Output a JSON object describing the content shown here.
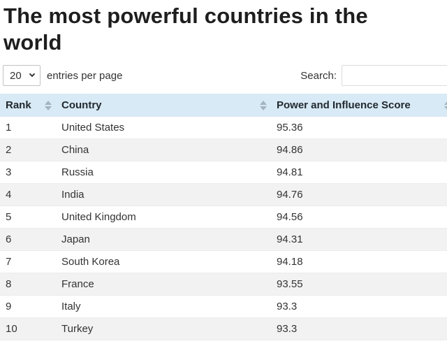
{
  "page": {
    "title": "The most powerful countries in the world"
  },
  "controls": {
    "entries_select_value": "20",
    "entries_label": "entries per page",
    "search_label": "Search:",
    "search_value": ""
  },
  "table": {
    "columns": [
      {
        "label": "Rank"
      },
      {
        "label": "Country"
      },
      {
        "label": "Power and Influence Score"
      }
    ],
    "rows": [
      {
        "rank": "1",
        "country": "United States",
        "score": "95.36"
      },
      {
        "rank": "2",
        "country": "China",
        "score": "94.86"
      },
      {
        "rank": "3",
        "country": "Russia",
        "score": "94.81"
      },
      {
        "rank": "4",
        "country": "India",
        "score": "94.76"
      },
      {
        "rank": "5",
        "country": "United Kingdom",
        "score": "94.56"
      },
      {
        "rank": "6",
        "country": "Japan",
        "score": "94.31"
      },
      {
        "rank": "7",
        "country": "South Korea",
        "score": "94.18"
      },
      {
        "rank": "8",
        "country": "France",
        "score": "93.55"
      },
      {
        "rank": "9",
        "country": "Italy",
        "score": "93.3"
      },
      {
        "rank": "10",
        "country": "Turkey",
        "score": "93.3"
      }
    ]
  },
  "icons": {
    "chevron": "chevron-down-icon",
    "sort": "sort-arrows-icon"
  },
  "colors": {
    "header_bg": "#d8eaf5",
    "row_stripe": "#f2f2f2",
    "sort_arrow": "#a5b4bf",
    "title_text": "#1e1e1e",
    "body_text": "#333333"
  }
}
